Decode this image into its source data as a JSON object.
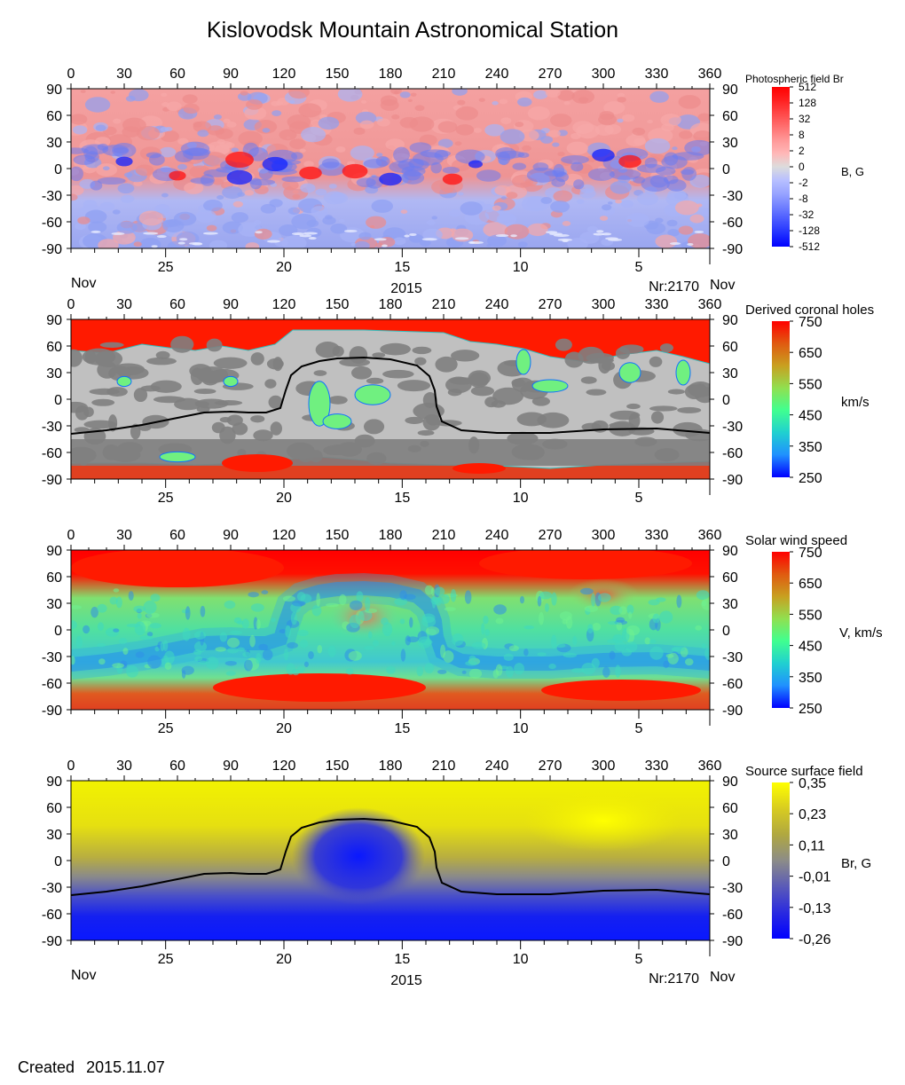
{
  "title": "Kislovodsk Mountain Astronomical Station",
  "footer": {
    "created_label": "Created",
    "created_date": "2015.11.07"
  },
  "common": {
    "longitude_ticks": [
      0,
      30,
      60,
      90,
      120,
      150,
      180,
      210,
      240,
      270,
      300,
      330,
      360
    ],
    "latitude_ticks": [
      90,
      60,
      30,
      0,
      -30,
      -60,
      -90
    ],
    "date_ticks": [
      "25",
      "20",
      "15",
      "10",
      "5"
    ],
    "month_left": "Nov",
    "month_right": "Nov",
    "year": "2015",
    "rotation": "Nr:2170"
  },
  "neutral_line": [
    [
      0,
      -39
    ],
    [
      20,
      -35
    ],
    [
      40,
      -29
    ],
    [
      60,
      -21
    ],
    [
      75,
      -15
    ],
    [
      90,
      -14
    ],
    [
      100,
      -15
    ],
    [
      110,
      -15
    ],
    [
      118,
      -10
    ],
    [
      121,
      10
    ],
    [
      124,
      27
    ],
    [
      130,
      37
    ],
    [
      140,
      43
    ],
    [
      150,
      46
    ],
    [
      165,
      47
    ],
    [
      180,
      45
    ],
    [
      195,
      38
    ],
    [
      202,
      26
    ],
    [
      205,
      10
    ],
    [
      206,
      -8
    ],
    [
      209,
      -25
    ],
    [
      220,
      -35
    ],
    [
      240,
      -38
    ],
    [
      270,
      -38
    ],
    [
      300,
      -34
    ],
    [
      330,
      -33
    ],
    [
      360,
      -38
    ]
  ],
  "chart_data": [
    {
      "type": "heatmap",
      "name": "photospheric",
      "title": "Photospheric field Br",
      "xlabel": "",
      "ylabel": "",
      "xlim": [
        0,
        360
      ],
      "ylim": [
        -90,
        90
      ],
      "colorbar_label": "B, G",
      "colorbar_ticks": [
        "512",
        "128",
        "32",
        "8",
        "2",
        "0",
        "-2",
        "-8",
        "-32",
        "-128",
        "-512"
      ],
      "colorbar_colors": [
        "#ff0000",
        "#ff2020",
        "#ff4848",
        "#ff7070",
        "#ff9898",
        "#ffb8b8",
        "#dcdcdc",
        "#b8c0ff",
        "#98a4ff",
        "#7080ff",
        "#4858ff",
        "#2030ff",
        "#0000ff"
      ],
      "show_dates": true,
      "show_month_year": true,
      "features": [
        {
          "lon": 95,
          "lat": 10,
          "r": 10,
          "sign": "+"
        },
        {
          "lon": 115,
          "lat": 5,
          "r": 9,
          "sign": "-"
        },
        {
          "lon": 95,
          "lat": -10,
          "r": 9,
          "sign": "-"
        },
        {
          "lon": 135,
          "lat": -5,
          "r": 8,
          "sign": "+"
        },
        {
          "lon": 160,
          "lat": -3,
          "r": 9,
          "sign": "+"
        },
        {
          "lon": 180,
          "lat": -12,
          "r": 8,
          "sign": "-"
        },
        {
          "lon": 215,
          "lat": -12,
          "r": 7,
          "sign": "+"
        },
        {
          "lon": 228,
          "lat": 5,
          "r": 5,
          "sign": "-"
        },
        {
          "lon": 300,
          "lat": 15,
          "r": 8,
          "sign": "-"
        },
        {
          "lon": 315,
          "lat": 8,
          "r": 8,
          "sign": "+"
        },
        {
          "lon": 60,
          "lat": -8,
          "r": 6,
          "sign": "+"
        },
        {
          "lon": 30,
          "lat": 8,
          "r": 6,
          "sign": "-"
        }
      ]
    },
    {
      "type": "heatmap",
      "name": "coronal_holes",
      "title": "Derived coronal holes",
      "xlabel": "",
      "ylabel": "",
      "xlim": [
        0,
        360
      ],
      "ylim": [
        -90,
        90
      ],
      "colorbar_label": "km/s",
      "colorbar_ticks": [
        "750",
        "650",
        "550",
        "450",
        "350",
        "250"
      ],
      "colorbar_colors": [
        "#ff0000",
        "#e05a10",
        "#c8a020",
        "#90e050",
        "#40ff90",
        "#20d0d0",
        "#2090ff",
        "#0000ff"
      ],
      "show_dates": true,
      "show_month_year": false,
      "show_neutral_line": true
    },
    {
      "type": "heatmap",
      "name": "solar_wind",
      "title": "Solar wind speed",
      "xlabel": "",
      "ylabel": "",
      "xlim": [
        0,
        360
      ],
      "ylim": [
        -90,
        90
      ],
      "colorbar_label": "V, km/s",
      "colorbar_ticks": [
        "750",
        "650",
        "550",
        "450",
        "350",
        "250"
      ],
      "colorbar_colors": [
        "#ff0000",
        "#e05a10",
        "#c8a020",
        "#90e050",
        "#40ff90",
        "#20d0d0",
        "#2090ff",
        "#0000ff"
      ],
      "show_dates": true,
      "show_month_year": false
    },
    {
      "type": "heatmap",
      "name": "source_surface",
      "title": "Source surface field",
      "xlabel": "",
      "ylabel": "",
      "xlim": [
        0,
        360
      ],
      "ylim": [
        -90,
        90
      ],
      "colorbar_label": "Br, G",
      "colorbar_ticks": [
        "0,35",
        "0,23",
        "0,11",
        "-0,01",
        "-0,13",
        "-0,26"
      ],
      "colorbar_colors": [
        "#ffff00",
        "#d8cc20",
        "#b0a840",
        "#8c8c88",
        "#5a5ab8",
        "#2a2ae0",
        "#0000ff"
      ],
      "show_dates": true,
      "show_month_year": true,
      "show_neutral_line": true
    }
  ],
  "colors": {
    "red": "#ff1a00",
    "grey_light": "#c0c0c0",
    "grey_dark": "#808080",
    "wind_cyan": "#40d8c0",
    "wind_green": "#70f090",
    "wind_blue": "#2080f0",
    "ss_yellow": "#f2f200",
    "ss_blue": "#0a18ff",
    "ss_grey": "#8a8a8a"
  }
}
